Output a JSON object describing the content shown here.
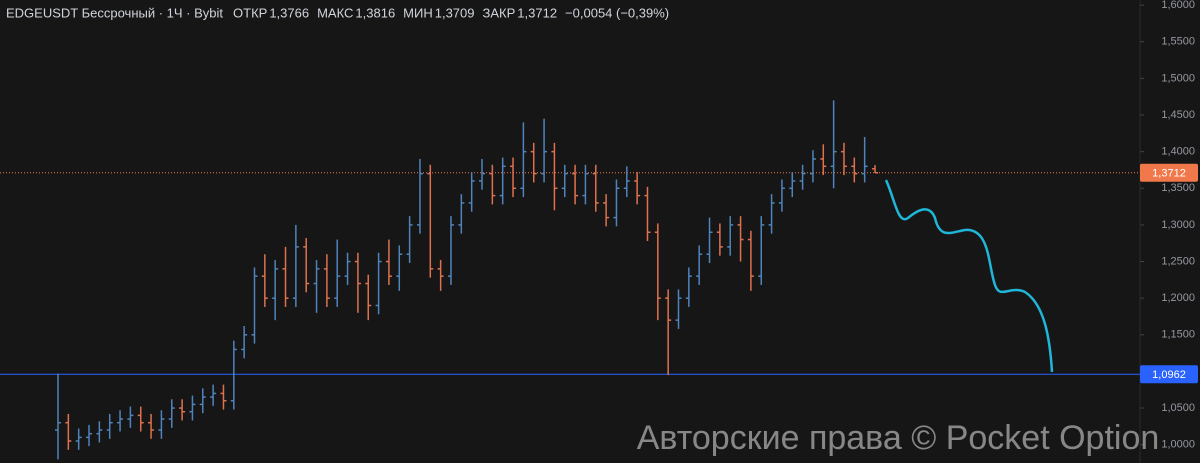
{
  "chart_data": {
    "type": "ohlc",
    "title": "EDGEUSDT Бессрочный · 1Ч · Bybit",
    "header_values": [
      {
        "label": "ОТКР",
        "value": "1,3766"
      },
      {
        "label": "МАКС",
        "value": "1,3816"
      },
      {
        "label": "МИН",
        "value": "1,3709"
      },
      {
        "label": "ЗАКР",
        "value": "1,3712"
      }
    ],
    "change": "−0,0054 (−0,39%)",
    "up_color": "#4f84bd",
    "down_color": "#e0714f",
    "open": [
      1.02,
      1.03,
      1.005,
      1.01,
      1.015,
      1.02,
      1.03,
      1.035,
      1.04,
      1.03,
      1.02,
      1.035,
      1.05,
      1.045,
      1.055,
      1.065,
      1.07,
      1.06,
      1.13,
      1.15,
      1.23,
      1.2,
      1.24,
      1.2,
      1.27,
      1.22,
      1.24,
      1.2,
      1.23,
      1.25,
      1.22,
      1.19,
      1.25,
      1.23,
      1.26,
      1.3,
      1.37,
      1.24,
      1.23,
      1.3,
      1.33,
      1.36,
      1.37,
      1.34,
      1.38,
      1.35,
      1.4,
      1.37,
      1.4,
      1.35,
      1.37,
      1.34,
      1.37,
      1.33,
      1.31,
      1.35,
      1.36,
      1.34,
      1.29,
      1.2,
      1.17,
      1.2,
      1.23,
      1.26,
      1.29,
      1.27,
      1.3,
      1.28,
      1.23,
      1.3,
      1.33,
      1.35,
      1.36,
      1.37,
      1.39,
      1.38,
      1.4,
      1.38,
      1.37,
      1.3766
    ],
    "high": [
      1.097,
      1.042,
      1.022,
      1.027,
      1.032,
      1.042,
      1.047,
      1.052,
      1.052,
      1.042,
      1.047,
      1.062,
      1.062,
      1.067,
      1.077,
      1.082,
      1.082,
      1.142,
      1.162,
      1.242,
      1.26,
      1.252,
      1.27,
      1.3,
      1.282,
      1.252,
      1.26,
      1.28,
      1.262,
      1.262,
      1.232,
      1.262,
      1.28,
      1.272,
      1.312,
      1.39,
      1.382,
      1.252,
      1.312,
      1.342,
      1.372,
      1.39,
      1.382,
      1.392,
      1.392,
      1.44,
      1.412,
      1.445,
      1.412,
      1.382,
      1.382,
      1.382,
      1.382,
      1.342,
      1.362,
      1.38,
      1.372,
      1.352,
      1.302,
      1.212,
      1.212,
      1.242,
      1.272,
      1.31,
      1.302,
      1.312,
      1.312,
      1.292,
      1.312,
      1.342,
      1.362,
      1.372,
      1.382,
      1.402,
      1.41,
      1.47,
      1.412,
      1.392,
      1.42,
      1.3816
    ],
    "low": [
      0.98,
      0.993,
      0.993,
      0.998,
      1.003,
      1.008,
      1.018,
      1.023,
      1.018,
      1.008,
      1.008,
      1.023,
      1.033,
      1.033,
      1.043,
      1.053,
      1.048,
      1.048,
      1.118,
      1.138,
      1.188,
      1.17,
      1.188,
      1.188,
      1.208,
      1.18,
      1.188,
      1.188,
      1.218,
      1.18,
      1.17,
      1.178,
      1.218,
      1.21,
      1.248,
      1.288,
      1.228,
      1.21,
      1.218,
      1.288,
      1.318,
      1.348,
      1.328,
      1.328,
      1.338,
      1.338,
      1.358,
      1.358,
      1.32,
      1.338,
      1.328,
      1.328,
      1.318,
      1.298,
      1.298,
      1.338,
      1.328,
      1.278,
      1.17,
      1.095,
      1.158,
      1.188,
      1.218,
      1.248,
      1.258,
      1.258,
      1.25,
      1.21,
      1.218,
      1.288,
      1.318,
      1.338,
      1.348,
      1.358,
      1.368,
      1.35,
      1.368,
      1.358,
      1.358,
      1.3709
    ],
    "close": [
      1.03,
      1.005,
      1.01,
      1.015,
      1.02,
      1.03,
      1.035,
      1.04,
      1.03,
      1.02,
      1.035,
      1.05,
      1.045,
      1.055,
      1.065,
      1.07,
      1.06,
      1.13,
      1.15,
      1.23,
      1.2,
      1.24,
      1.2,
      1.27,
      1.22,
      1.24,
      1.2,
      1.23,
      1.25,
      1.22,
      1.19,
      1.25,
      1.23,
      1.26,
      1.3,
      1.37,
      1.24,
      1.23,
      1.3,
      1.33,
      1.36,
      1.37,
      1.34,
      1.38,
      1.35,
      1.4,
      1.37,
      1.4,
      1.35,
      1.37,
      1.34,
      1.37,
      1.33,
      1.31,
      1.35,
      1.36,
      1.34,
      1.29,
      1.2,
      1.17,
      1.2,
      1.23,
      1.26,
      1.29,
      1.27,
      1.3,
      1.28,
      1.23,
      1.3,
      1.33,
      1.35,
      1.36,
      1.37,
      1.39,
      1.38,
      1.4,
      1.38,
      1.37,
      1.38,
      1.3712
    ],
    "ylim": [
      0.975,
      1.607
    ],
    "yticks": [
      {
        "value": 1.0,
        "label": "1,0000"
      },
      {
        "value": 1.05,
        "label": "1,0500"
      },
      {
        "value": 1.1,
        "label": "1,1000"
      },
      {
        "value": 1.15,
        "label": "1,1500"
      },
      {
        "value": 1.2,
        "label": "1,2000"
      },
      {
        "value": 1.25,
        "label": "1,2500"
      },
      {
        "value": 1.3,
        "label": "1,3000"
      },
      {
        "value": 1.35,
        "label": "1,3500"
      },
      {
        "value": 1.4,
        "label": "1,4000"
      },
      {
        "value": 1.45,
        "label": "1,4500"
      },
      {
        "value": 1.5,
        "label": "1,5000"
      },
      {
        "value": 1.55,
        "label": "1,5500"
      },
      {
        "value": 1.6,
        "label": "1,6000"
      }
    ],
    "price_line": {
      "value": 1.3712,
      "label": "1,3712",
      "color": "#f0784a"
    },
    "level_line": {
      "value": 1.0962,
      "label": "1,0962",
      "color": "#2962ff"
    },
    "watermark": "Авторские права © Pocket Option"
  }
}
